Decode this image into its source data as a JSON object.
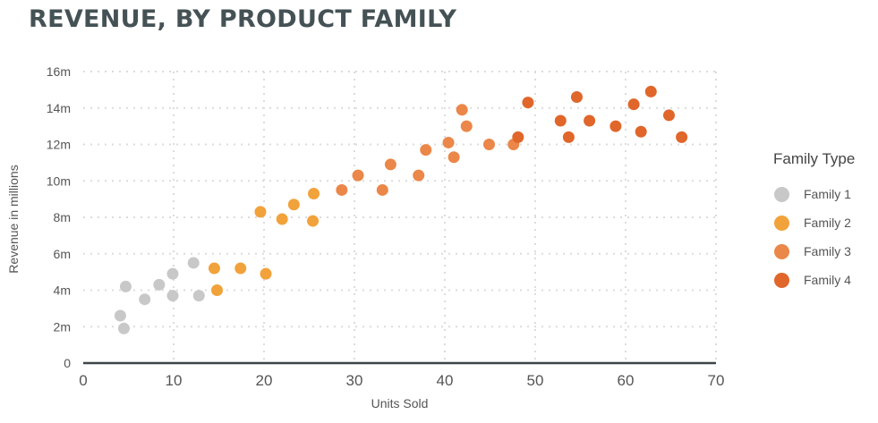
{
  "chart_data": {
    "type": "scatter",
    "title": "REVENUE, BY PRODUCT FAMILY",
    "xlabel": "Units Sold",
    "ylabel": "Revenue in millions",
    "xlim": [
      0,
      70
    ],
    "ylim": [
      0,
      16
    ],
    "x_ticks": [
      0,
      10,
      20,
      30,
      40,
      50,
      60,
      70
    ],
    "y_ticks": [
      0,
      2,
      4,
      6,
      8,
      10,
      12,
      14,
      16
    ],
    "y_tick_labels": [
      "0",
      "2m",
      "4m",
      "6m",
      "8m",
      "10m",
      "12m",
      "14m",
      "16m"
    ],
    "grid": true,
    "legend": {
      "title": "Family Type",
      "position": "right"
    },
    "series": [
      {
        "name": "Family 1",
        "color": "#c8c8c8",
        "points": [
          [
            4.1,
            2.6
          ],
          [
            4.5,
            1.9
          ],
          [
            4.7,
            4.2
          ],
          [
            6.8,
            3.5
          ],
          [
            8.4,
            4.3
          ],
          [
            9.9,
            4.9
          ],
          [
            9.9,
            3.7
          ],
          [
            12.2,
            5.5
          ],
          [
            12.8,
            3.7
          ]
        ]
      },
      {
        "name": "Family 2",
        "color": "#f2a23a",
        "points": [
          [
            14.5,
            5.2
          ],
          [
            14.8,
            4.0
          ],
          [
            17.4,
            5.2
          ],
          [
            19.6,
            8.3
          ],
          [
            20.2,
            4.9
          ],
          [
            22.0,
            7.9
          ],
          [
            23.3,
            8.7
          ],
          [
            25.4,
            7.8
          ],
          [
            25.5,
            9.3
          ]
        ]
      },
      {
        "name": "Family 3",
        "color": "#eb8748",
        "points": [
          [
            28.6,
            9.5
          ],
          [
            30.4,
            10.3
          ],
          [
            33.1,
            9.5
          ],
          [
            34.0,
            10.9
          ],
          [
            37.1,
            10.3
          ],
          [
            37.9,
            11.7
          ],
          [
            40.4,
            12.1
          ],
          [
            41.0,
            11.3
          ],
          [
            41.9,
            13.9
          ],
          [
            42.4,
            13.0
          ],
          [
            44.9,
            12.0
          ],
          [
            47.6,
            12.0
          ]
        ]
      },
      {
        "name": "Family 4",
        "color": "#e0662a",
        "points": [
          [
            48.1,
            12.4
          ],
          [
            49.2,
            14.3
          ],
          [
            52.8,
            13.3
          ],
          [
            53.7,
            12.4
          ],
          [
            54.6,
            14.6
          ],
          [
            56.0,
            13.3
          ],
          [
            58.9,
            13.0
          ],
          [
            60.9,
            14.2
          ],
          [
            61.7,
            12.7
          ],
          [
            62.8,
            14.9
          ],
          [
            64.8,
            13.6
          ],
          [
            66.2,
            12.4
          ]
        ]
      }
    ]
  }
}
